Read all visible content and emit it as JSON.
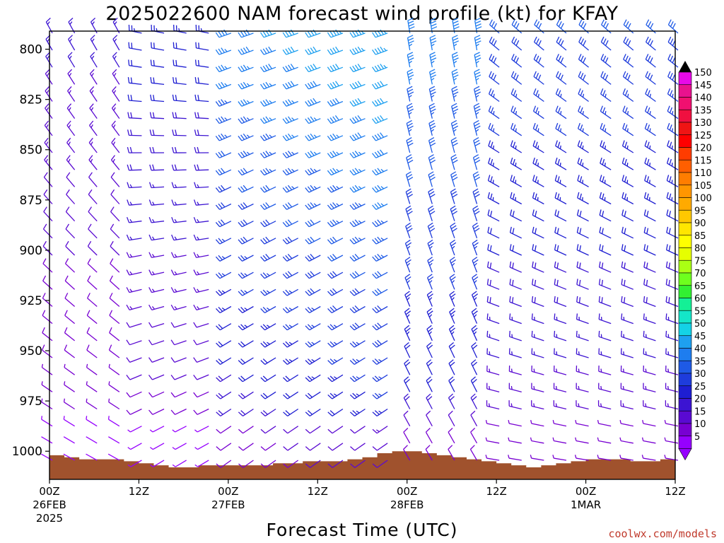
{
  "chart_data": {
    "type": "wind-barb-time-height",
    "title": "2025022600 NAM forecast wind profile (kt) for KFAY",
    "xlabel": "Forecast Time (UTC)",
    "ylabel": "",
    "credit": "coolwx.com/models",
    "units": "kt",
    "y_axis": {
      "ticks": [
        800,
        825,
        850,
        875,
        900,
        925,
        950,
        975,
        1000
      ],
      "range": [
        791,
        1014
      ],
      "inverted": true
    },
    "x_axis": {
      "range_hours": [
        0,
        84
      ],
      "ticks": [
        {
          "hour": 0,
          "label": "00Z",
          "sub": "26FEB",
          "sub2": "2025"
        },
        {
          "hour": 12,
          "label": "12Z",
          "sub": "",
          "sub2": ""
        },
        {
          "hour": 24,
          "label": "00Z",
          "sub": "27FEB",
          "sub2": ""
        },
        {
          "hour": 36,
          "label": "12Z",
          "sub": "",
          "sub2": ""
        },
        {
          "hour": 48,
          "label": "00Z",
          "sub": "28FEB",
          "sub2": ""
        },
        {
          "hour": 60,
          "label": "12Z",
          "sub": "",
          "sub2": ""
        },
        {
          "hour": 72,
          "label": "00Z",
          "sub": "1MAR",
          "sub2": ""
        },
        {
          "hour": 84,
          "label": "12Z",
          "sub": "",
          "sub2": ""
        }
      ]
    },
    "colorbar": {
      "labels": [
        150,
        145,
        140,
        135,
        130,
        125,
        120,
        115,
        110,
        105,
        100,
        95,
        90,
        85,
        80,
        75,
        70,
        65,
        60,
        55,
        50,
        45,
        40,
        35,
        30,
        25,
        20,
        15,
        10,
        5
      ],
      "colors": [
        "#e80ae8",
        "#e8128e",
        "#f01070",
        "#f01040",
        "#f01414",
        "#ff0000",
        "#ff3c00",
        "#ff5f00",
        "#ff7d00",
        "#ff9600",
        "#ffaa00",
        "#ffc800",
        "#ffe600",
        "#ffff00",
        "#e6ff00",
        "#aaff14",
        "#6eff1e",
        "#32f032",
        "#14f096",
        "#14e6c8",
        "#14d2e6",
        "#1ea0f0",
        "#1e7def",
        "#1e5ae6",
        "#1e3cdc",
        "#1e1ed2",
        "#3c14d2",
        "#5a0ad2",
        "#7800d2",
        "#9600ff"
      ]
    },
    "surface_pressure": [
      [
        0,
        1002
      ],
      [
        2,
        1003
      ],
      [
        4,
        1004
      ],
      [
        6,
        1004
      ],
      [
        8,
        1004
      ],
      [
        10,
        1005
      ],
      [
        12,
        1006
      ],
      [
        14,
        1007
      ],
      [
        16,
        1008
      ],
      [
        18,
        1008
      ],
      [
        20,
        1007
      ],
      [
        22,
        1007
      ],
      [
        24,
        1007
      ],
      [
        26,
        1007
      ],
      [
        28,
        1007
      ],
      [
        30,
        1006
      ],
      [
        32,
        1006
      ],
      [
        34,
        1005
      ],
      [
        36,
        1005
      ],
      [
        38,
        1005
      ],
      [
        40,
        1004
      ],
      [
        42,
        1003
      ],
      [
        44,
        1001
      ],
      [
        46,
        1000
      ],
      [
        48,
        1000
      ],
      [
        50,
        1001
      ],
      [
        52,
        1002
      ],
      [
        54,
        1003
      ],
      [
        56,
        1004
      ],
      [
        58,
        1005
      ],
      [
        60,
        1006
      ],
      [
        62,
        1007
      ],
      [
        64,
        1008
      ],
      [
        66,
        1007
      ],
      [
        68,
        1006
      ],
      [
        70,
        1005
      ],
      [
        72,
        1004
      ],
      [
        74,
        1004
      ],
      [
        76,
        1004
      ],
      [
        78,
        1005
      ],
      [
        80,
        1005
      ],
      [
        82,
        1004
      ],
      [
        84,
        1003
      ]
    ]
  }
}
